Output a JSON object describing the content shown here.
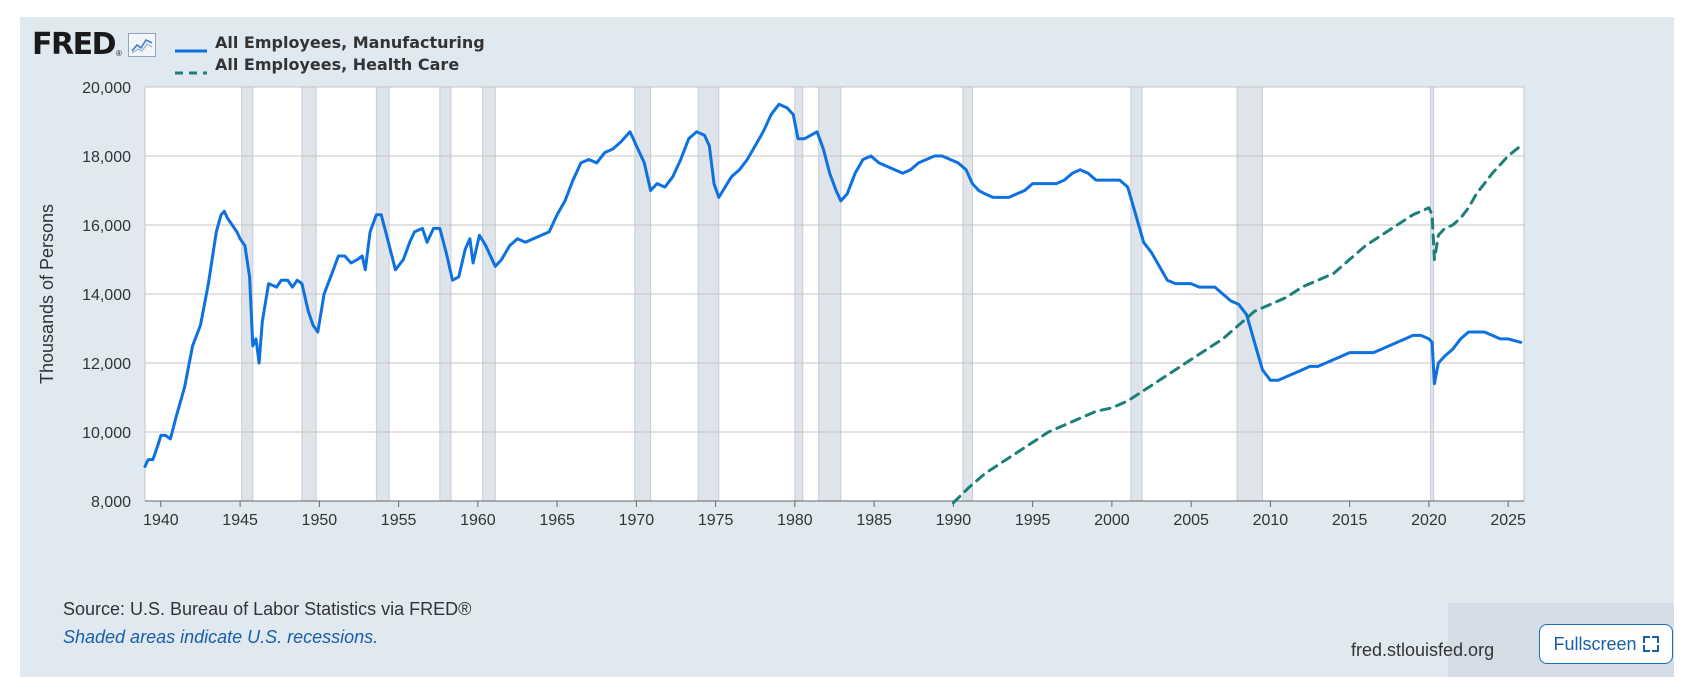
{
  "brand": {
    "logo_text": "FRED",
    "reg_mark": "®",
    "graph_icon": "line-graph-icon"
  },
  "footer": {
    "source": "Source: U.S. Bureau of Labor Statistics via FRED®",
    "recession_note": "Shaded areas indicate U.S. recessions.",
    "site": "fred.stlouisfed.org",
    "fullscreen_label": "Fullscreen",
    "fullscreen_icon": "expand-icon"
  },
  "colors": {
    "manufacturing": "#0e71e0",
    "health_care": "#1d7f7a",
    "recession": "#dfe4ea",
    "frame": "#e1e9f0"
  },
  "chart_data": {
    "type": "line",
    "title": "",
    "xlabel": "",
    "ylabel": "Thousands of Persons",
    "xlim": [
      1939.0,
      2026.0
    ],
    "ylim": [
      8000,
      20000
    ],
    "y_ticks": [
      8000,
      10000,
      12000,
      14000,
      16000,
      18000,
      20000
    ],
    "y_tick_labels": [
      "8,000",
      "10,000",
      "12,000",
      "14,000",
      "16,000",
      "18,000",
      "20,000"
    ],
    "x_ticks": [
      1940,
      1945,
      1950,
      1955,
      1960,
      1965,
      1970,
      1975,
      1980,
      1985,
      1990,
      1995,
      2000,
      2005,
      2010,
      2015,
      2020,
      2025
    ],
    "x_tick_labels": [
      "1940",
      "1945",
      "1950",
      "1955",
      "1960",
      "1965",
      "1970",
      "1975",
      "1980",
      "1985",
      "1990",
      "1995",
      "2000",
      "2005",
      "2010",
      "2015",
      "2020",
      "2025"
    ],
    "grid": true,
    "legend_position": "top-left",
    "recessions": [
      [
        1945.1,
        1945.8
      ],
      [
        1948.9,
        1949.8
      ],
      [
        1953.6,
        1954.4
      ],
      [
        1957.6,
        1958.3
      ],
      [
        1960.3,
        1961.1
      ],
      [
        1969.9,
        1970.9
      ],
      [
        1973.9,
        1975.2
      ],
      [
        1980.0,
        1980.5
      ],
      [
        1981.5,
        1982.9
      ],
      [
        1990.6,
        1991.2
      ],
      [
        2001.2,
        2001.9
      ],
      [
        2007.9,
        2009.5
      ],
      [
        2020.1,
        2020.3
      ]
    ],
    "series": [
      {
        "name": "All Employees, Manufacturing",
        "style": "solid",
        "points": [
          [
            1939.0,
            9000
          ],
          [
            1939.2,
            9200
          ],
          [
            1939.5,
            9200
          ],
          [
            1939.8,
            9600
          ],
          [
            1940.0,
            9900
          ],
          [
            1940.3,
            9900
          ],
          [
            1940.6,
            9800
          ],
          [
            1941.0,
            10500
          ],
          [
            1941.5,
            11300
          ],
          [
            1942.0,
            12500
          ],
          [
            1942.5,
            13100
          ],
          [
            1943.0,
            14300
          ],
          [
            1943.5,
            15800
          ],
          [
            1943.8,
            16300
          ],
          [
            1944.0,
            16400
          ],
          [
            1944.2,
            16200
          ],
          [
            1944.5,
            16000
          ],
          [
            1944.8,
            15800
          ],
          [
            1945.0,
            15600
          ],
          [
            1945.3,
            15400
          ],
          [
            1945.6,
            14500
          ],
          [
            1945.8,
            12500
          ],
          [
            1946.0,
            12700
          ],
          [
            1946.2,
            12000
          ],
          [
            1946.4,
            13200
          ],
          [
            1946.8,
            14300
          ],
          [
            1947.3,
            14200
          ],
          [
            1947.6,
            14400
          ],
          [
            1948.0,
            14400
          ],
          [
            1948.3,
            14200
          ],
          [
            1948.6,
            14400
          ],
          [
            1948.9,
            14300
          ],
          [
            1949.3,
            13500
          ],
          [
            1949.6,
            13100
          ],
          [
            1949.9,
            12900
          ],
          [
            1950.3,
            14000
          ],
          [
            1950.8,
            14600
          ],
          [
            1951.2,
            15100
          ],
          [
            1951.6,
            15100
          ],
          [
            1952.0,
            14900
          ],
          [
            1952.4,
            15000
          ],
          [
            1952.7,
            15100
          ],
          [
            1952.9,
            14700
          ],
          [
            1953.2,
            15800
          ],
          [
            1953.6,
            16300
          ],
          [
            1953.9,
            16300
          ],
          [
            1954.3,
            15600
          ],
          [
            1954.8,
            14700
          ],
          [
            1955.3,
            15000
          ],
          [
            1955.7,
            15500
          ],
          [
            1956.0,
            15800
          ],
          [
            1956.5,
            15900
          ],
          [
            1956.8,
            15500
          ],
          [
            1957.2,
            15900
          ],
          [
            1957.6,
            15900
          ],
          [
            1958.0,
            15200
          ],
          [
            1958.4,
            14400
          ],
          [
            1958.8,
            14500
          ],
          [
            1959.2,
            15300
          ],
          [
            1959.5,
            15600
          ],
          [
            1959.7,
            14900
          ],
          [
            1960.1,
            15700
          ],
          [
            1960.5,
            15400
          ],
          [
            1960.9,
            15000
          ],
          [
            1961.1,
            14800
          ],
          [
            1961.5,
            15000
          ],
          [
            1962.0,
            15400
          ],
          [
            1962.5,
            15600
          ],
          [
            1963.0,
            15500
          ],
          [
            1963.5,
            15600
          ],
          [
            1964.0,
            15700
          ],
          [
            1964.5,
            15800
          ],
          [
            1965.0,
            16300
          ],
          [
            1965.5,
            16700
          ],
          [
            1966.0,
            17300
          ],
          [
            1966.5,
            17800
          ],
          [
            1967.0,
            17900
          ],
          [
            1967.5,
            17800
          ],
          [
            1968.0,
            18100
          ],
          [
            1968.5,
            18200
          ],
          [
            1969.0,
            18400
          ],
          [
            1969.6,
            18700
          ],
          [
            1970.0,
            18300
          ],
          [
            1970.5,
            17800
          ],
          [
            1970.9,
            17000
          ],
          [
            1971.3,
            17200
          ],
          [
            1971.8,
            17100
          ],
          [
            1972.3,
            17400
          ],
          [
            1972.8,
            17900
          ],
          [
            1973.3,
            18500
          ],
          [
            1973.8,
            18700
          ],
          [
            1974.3,
            18600
          ],
          [
            1974.6,
            18300
          ],
          [
            1974.9,
            17200
          ],
          [
            1975.2,
            16800
          ],
          [
            1975.6,
            17100
          ],
          [
            1976.0,
            17400
          ],
          [
            1976.5,
            17600
          ],
          [
            1977.0,
            17900
          ],
          [
            1977.5,
            18300
          ],
          [
            1978.0,
            18700
          ],
          [
            1978.5,
            19200
          ],
          [
            1979.0,
            19500
          ],
          [
            1979.5,
            19400
          ],
          [
            1979.9,
            19200
          ],
          [
            1980.2,
            18500
          ],
          [
            1980.6,
            18500
          ],
          [
            1981.0,
            18600
          ],
          [
            1981.4,
            18700
          ],
          [
            1981.8,
            18200
          ],
          [
            1982.2,
            17500
          ],
          [
            1982.6,
            17000
          ],
          [
            1982.9,
            16700
          ],
          [
            1983.3,
            16900
          ],
          [
            1983.8,
            17500
          ],
          [
            1984.3,
            17900
          ],
          [
            1984.8,
            18000
          ],
          [
            1985.3,
            17800
          ],
          [
            1985.8,
            17700
          ],
          [
            1986.3,
            17600
          ],
          [
            1986.8,
            17500
          ],
          [
            1987.3,
            17600
          ],
          [
            1987.8,
            17800
          ],
          [
            1988.3,
            17900
          ],
          [
            1988.8,
            18000
          ],
          [
            1989.3,
            18000
          ],
          [
            1989.8,
            17900
          ],
          [
            1990.3,
            17800
          ],
          [
            1990.8,
            17600
          ],
          [
            1991.2,
            17200
          ],
          [
            1991.6,
            17000
          ],
          [
            1992.0,
            16900
          ],
          [
            1992.5,
            16800
          ],
          [
            1993.0,
            16800
          ],
          [
            1993.5,
            16800
          ],
          [
            1994.0,
            16900
          ],
          [
            1994.5,
            17000
          ],
          [
            1995.0,
            17200
          ],
          [
            1995.5,
            17200
          ],
          [
            1996.0,
            17200
          ],
          [
            1996.5,
            17200
          ],
          [
            1997.0,
            17300
          ],
          [
            1997.5,
            17500
          ],
          [
            1998.0,
            17600
          ],
          [
            1998.5,
            17500
          ],
          [
            1999.0,
            17300
          ],
          [
            1999.5,
            17300
          ],
          [
            2000.0,
            17300
          ],
          [
            2000.5,
            17300
          ],
          [
            2001.0,
            17100
          ],
          [
            2001.5,
            16300
          ],
          [
            2002.0,
            15500
          ],
          [
            2002.5,
            15200
          ],
          [
            2003.0,
            14800
          ],
          [
            2003.5,
            14400
          ],
          [
            2004.0,
            14300
          ],
          [
            2004.5,
            14300
          ],
          [
            2005.0,
            14300
          ],
          [
            2005.5,
            14200
          ],
          [
            2006.0,
            14200
          ],
          [
            2006.5,
            14200
          ],
          [
            2007.0,
            14000
          ],
          [
            2007.5,
            13800
          ],
          [
            2008.0,
            13700
          ],
          [
            2008.5,
            13400
          ],
          [
            2009.0,
            12600
          ],
          [
            2009.5,
            11800
          ],
          [
            2010.0,
            11500
          ],
          [
            2010.5,
            11500
          ],
          [
            2011.0,
            11600
          ],
          [
            2011.5,
            11700
          ],
          [
            2012.0,
            11800
          ],
          [
            2012.5,
            11900
          ],
          [
            2013.0,
            11900
          ],
          [
            2013.5,
            12000
          ],
          [
            2014.0,
            12100
          ],
          [
            2014.5,
            12200
          ],
          [
            2015.0,
            12300
          ],
          [
            2015.5,
            12300
          ],
          [
            2016.0,
            12300
          ],
          [
            2016.5,
            12300
          ],
          [
            2017.0,
            12400
          ],
          [
            2017.5,
            12500
          ],
          [
            2018.0,
            12600
          ],
          [
            2018.5,
            12700
          ],
          [
            2019.0,
            12800
          ],
          [
            2019.5,
            12800
          ],
          [
            2020.0,
            12700
          ],
          [
            2020.2,
            12600
          ],
          [
            2020.35,
            11400
          ],
          [
            2020.6,
            12000
          ],
          [
            2021.0,
            12200
          ],
          [
            2021.5,
            12400
          ],
          [
            2022.0,
            12700
          ],
          [
            2022.5,
            12900
          ],
          [
            2023.0,
            12900
          ],
          [
            2023.5,
            12900
          ],
          [
            2024.0,
            12800
          ],
          [
            2024.5,
            12700
          ],
          [
            2025.0,
            12700
          ],
          [
            2025.8,
            12600
          ]
        ]
      },
      {
        "name": "All Employees, Health Care",
        "style": "dashed",
        "points": [
          [
            1990.0,
            7950
          ],
          [
            1991.0,
            8400
          ],
          [
            1992.0,
            8800
          ],
          [
            1993.0,
            9100
          ],
          [
            1994.0,
            9400
          ],
          [
            1995.0,
            9700
          ],
          [
            1996.0,
            10000
          ],
          [
            1997.0,
            10200
          ],
          [
            1998.0,
            10400
          ],
          [
            1999.0,
            10600
          ],
          [
            2000.0,
            10700
          ],
          [
            2001.0,
            10900
          ],
          [
            2002.0,
            11200
          ],
          [
            2003.0,
            11500
          ],
          [
            2004.0,
            11800
          ],
          [
            2005.0,
            12100
          ],
          [
            2006.0,
            12400
          ],
          [
            2007.0,
            12700
          ],
          [
            2008.0,
            13100
          ],
          [
            2009.0,
            13500
          ],
          [
            2010.0,
            13700
          ],
          [
            2011.0,
            13900
          ],
          [
            2012.0,
            14200
          ],
          [
            2013.0,
            14400
          ],
          [
            2014.0,
            14600
          ],
          [
            2015.0,
            15000
          ],
          [
            2016.0,
            15400
          ],
          [
            2017.0,
            15700
          ],
          [
            2018.0,
            16000
          ],
          [
            2019.0,
            16300
          ],
          [
            2020.0,
            16500
          ],
          [
            2020.2,
            16300
          ],
          [
            2020.35,
            15000
          ],
          [
            2020.6,
            15700
          ],
          [
            2021.0,
            15900
          ],
          [
            2021.5,
            16000
          ],
          [
            2022.0,
            16200
          ],
          [
            2022.5,
            16500
          ],
          [
            2023.0,
            16900
          ],
          [
            2024.0,
            17500
          ],
          [
            2025.0,
            18000
          ],
          [
            2025.8,
            18300
          ]
        ]
      }
    ]
  }
}
